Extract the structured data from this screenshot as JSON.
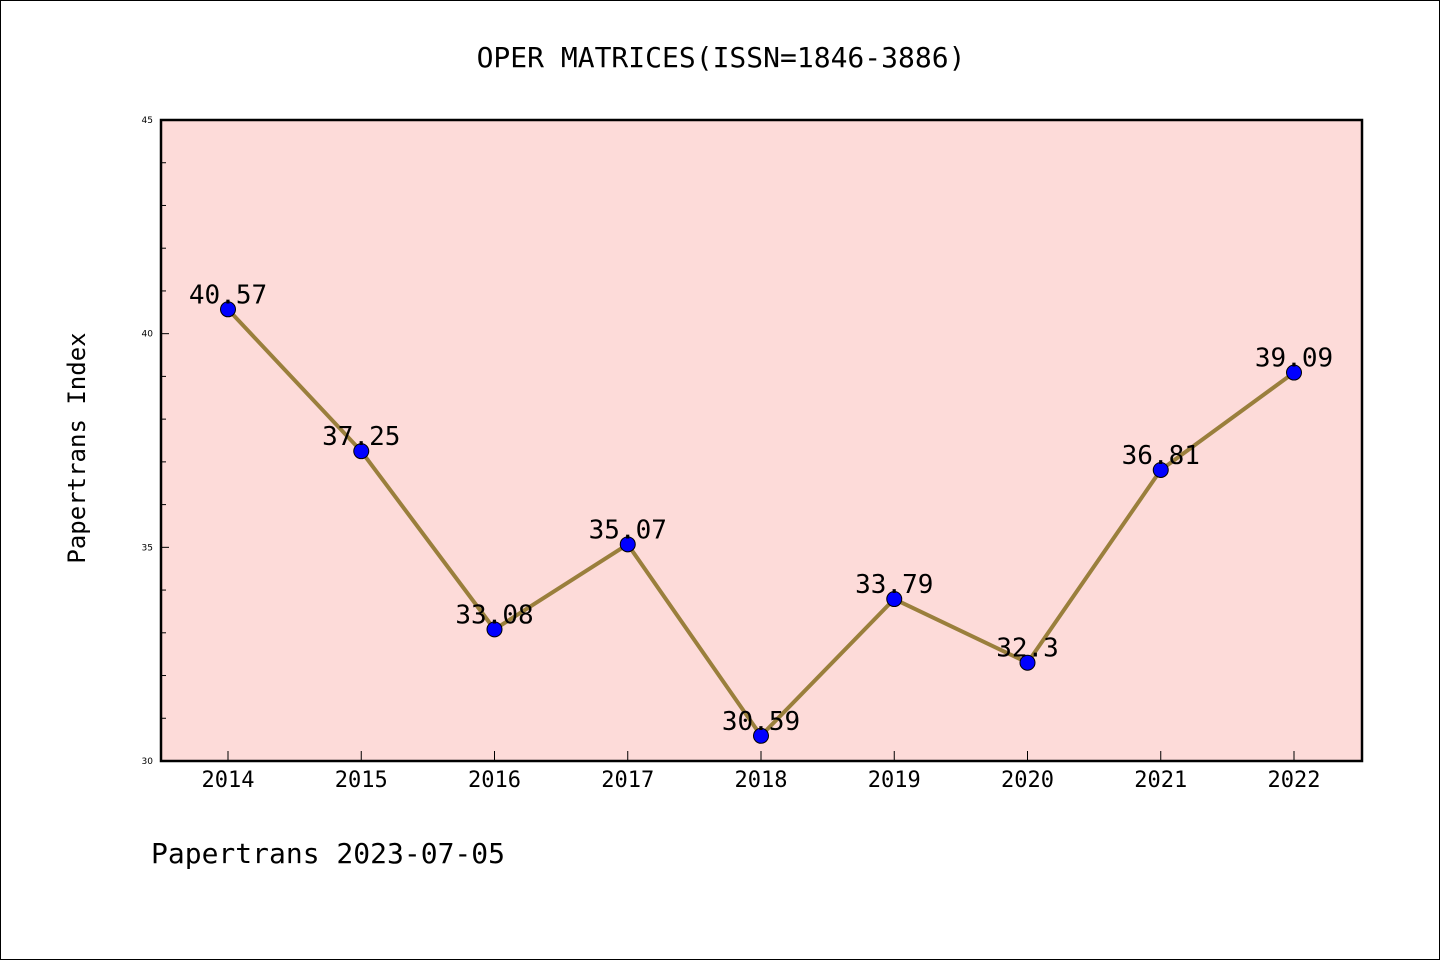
{
  "chart_data": {
    "type": "line",
    "title": "OPER MATRICES(ISSN=1846-3886)",
    "ylabel": "Papertrans Index",
    "xlabel": "",
    "categories": [
      "2014",
      "2015",
      "2016",
      "2017",
      "2018",
      "2019",
      "2020",
      "2021",
      "2022"
    ],
    "values": [
      40.57,
      37.25,
      33.08,
      35.07,
      30.59,
      33.79,
      32.3,
      36.81,
      39.09
    ],
    "data_labels": [
      "40.57",
      "37.25",
      "33.08",
      "35.07",
      "30.59",
      "33.79",
      "32.3",
      "36.81",
      "39.09"
    ],
    "ylim": [
      30,
      45
    ],
    "yticks": [
      "30",
      "35",
      "40",
      "45"
    ],
    "grid": false,
    "colors": {
      "plot_background": "#fddbd9",
      "line": "#9a7f3c",
      "marker": "#0000ff"
    }
  },
  "footer": "Papertrans 2023-07-05"
}
